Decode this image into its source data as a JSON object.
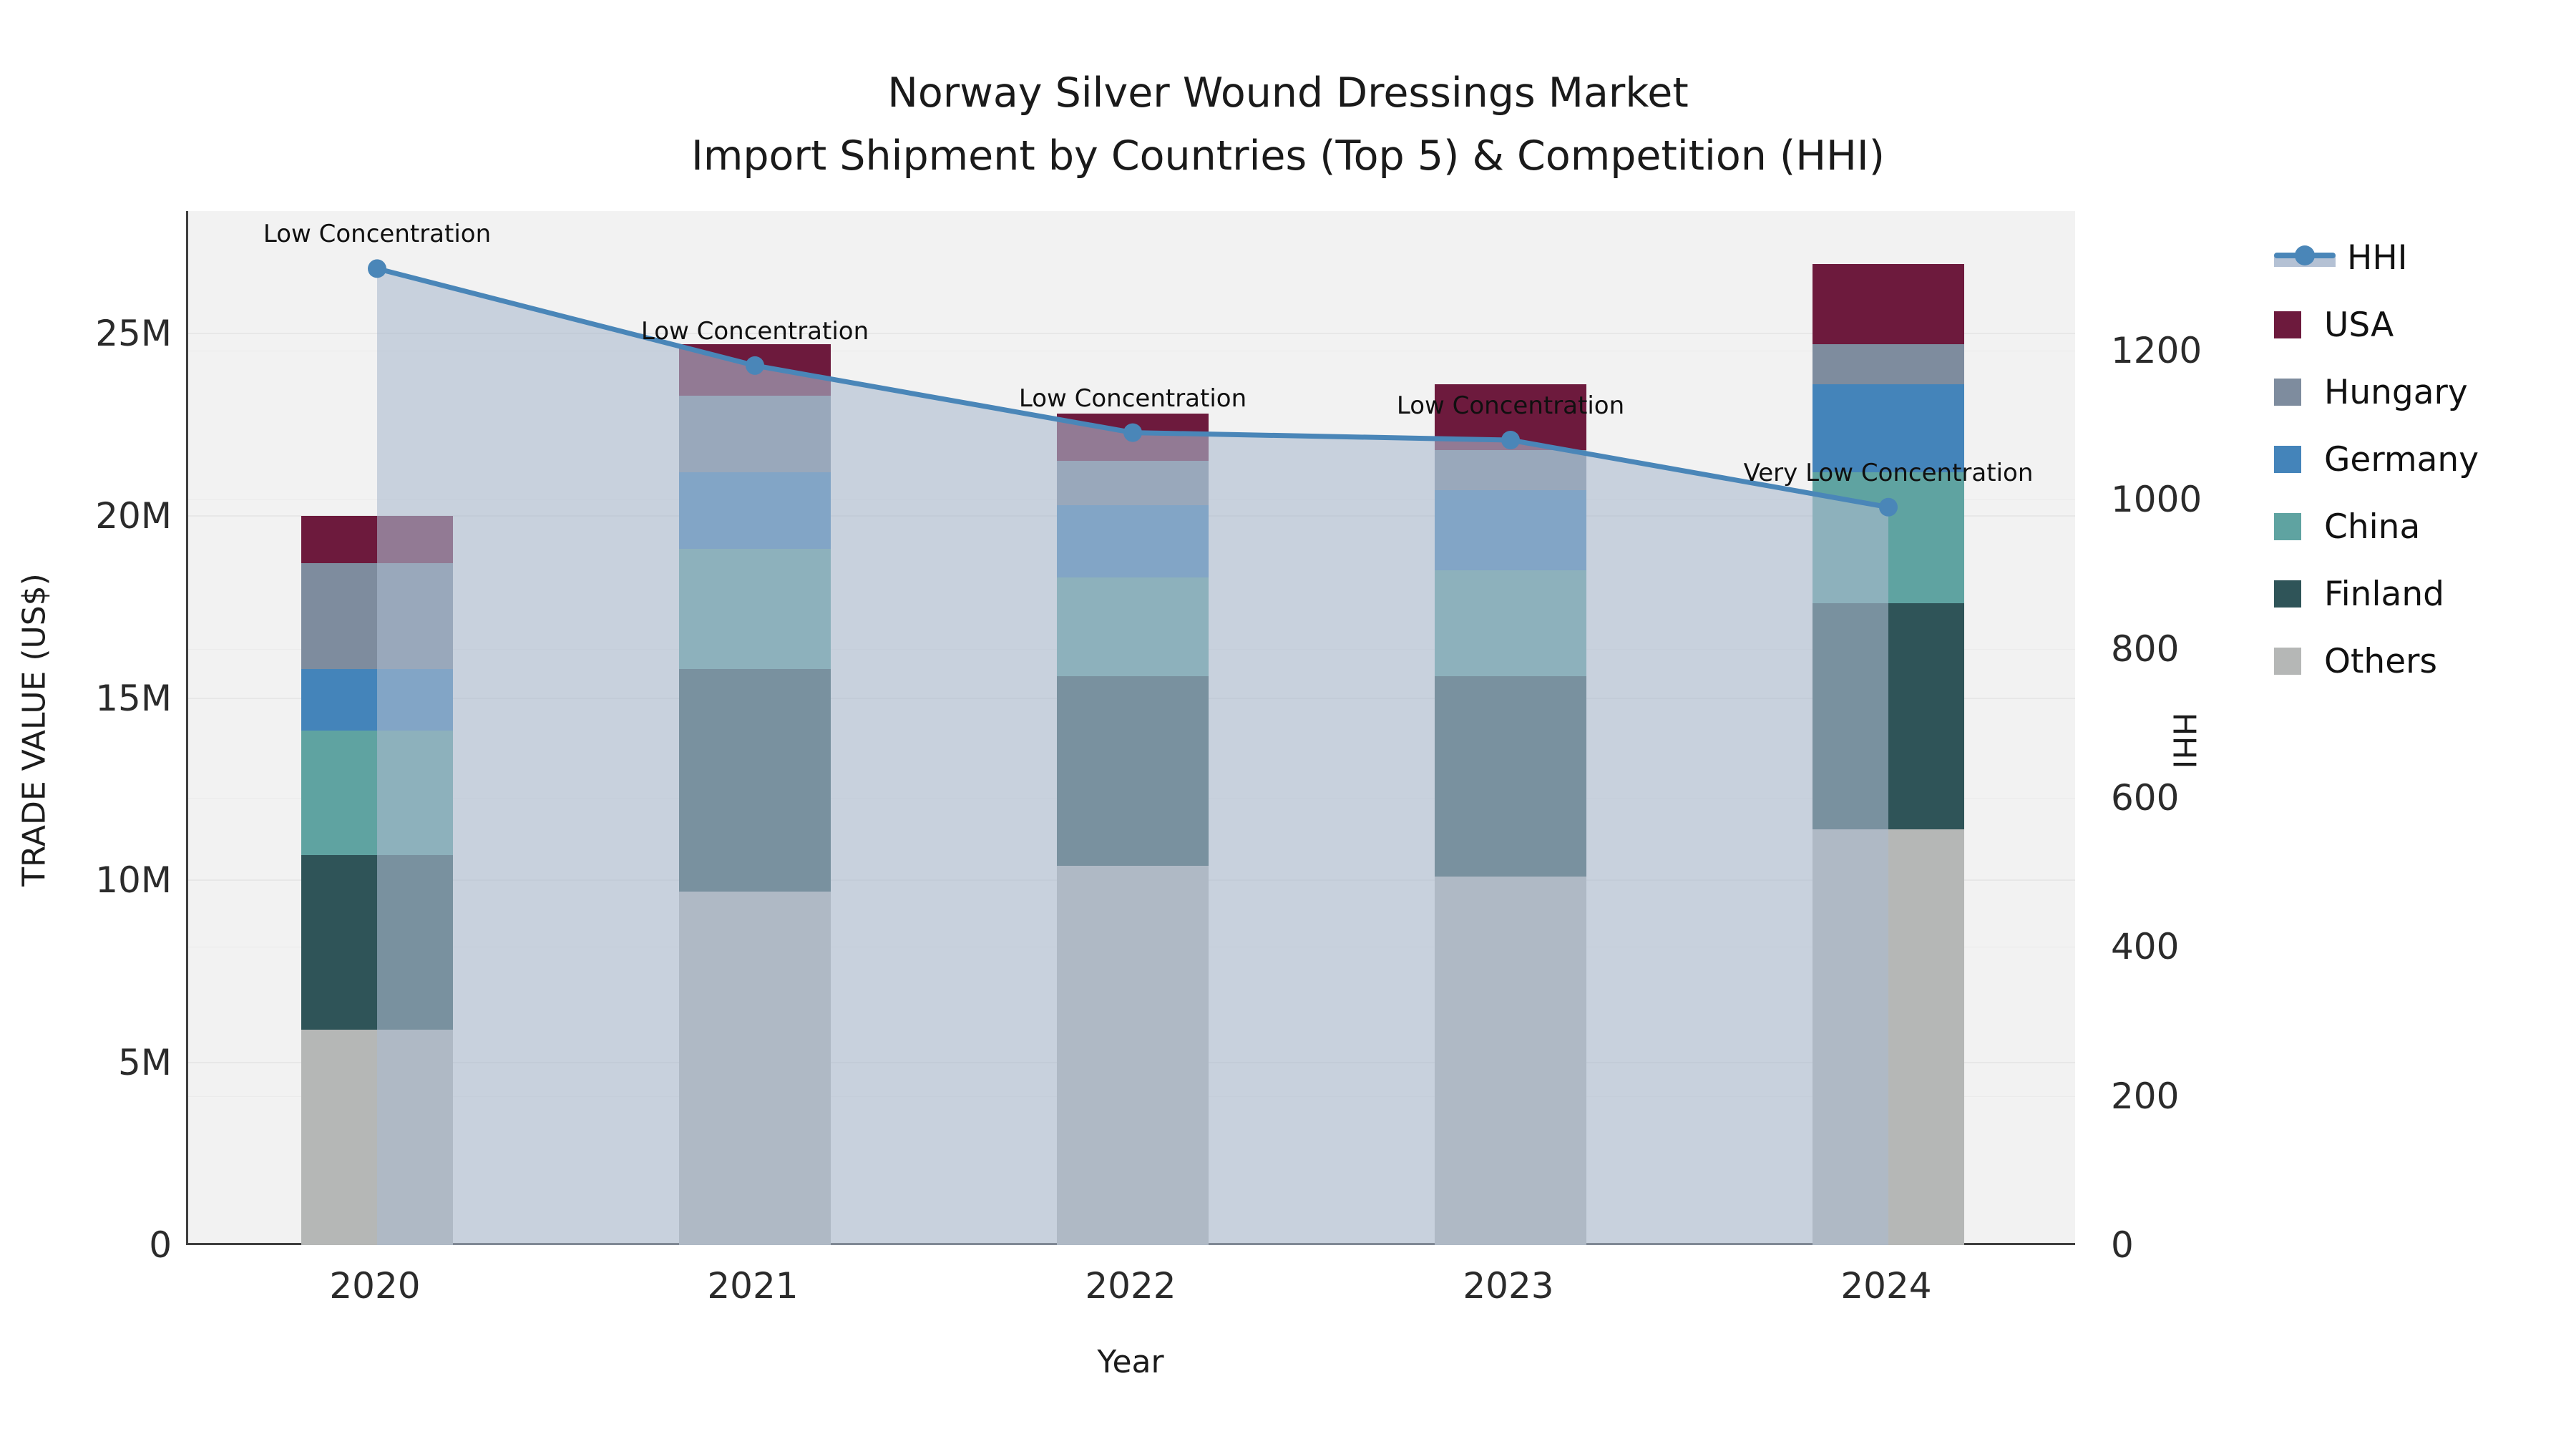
{
  "title": {
    "line1": "Norway Silver Wound Dressings Market",
    "line2": "Import Shipment by Countries (Top 5) & Competition (HHI)"
  },
  "axes": {
    "y_left_title": "TRADE VALUE (US$)",
    "y_right_title": "HHI",
    "x_title": "Year",
    "y_left_ticks": [
      "0",
      "5M",
      "10M",
      "15M",
      "20M",
      "25M"
    ],
    "y_left_tick_values": [
      0,
      5,
      10,
      15,
      20,
      25
    ],
    "y_right_ticks": [
      "0",
      "200",
      "400",
      "600",
      "800",
      "1000",
      "1200"
    ],
    "y_right_tick_values": [
      0,
      200,
      400,
      600,
      800,
      1000,
      1200
    ]
  },
  "legend": {
    "entries": [
      {
        "label": "HHI",
        "type": "line",
        "color": "#4a86b8"
      },
      {
        "label": "USA",
        "type": "square",
        "color": "#6d1a3d"
      },
      {
        "label": "Hungary",
        "type": "square",
        "color": "#7e8c9e"
      },
      {
        "label": "Germany",
        "type": "square",
        "color": "#4484ba"
      },
      {
        "label": "China",
        "type": "square",
        "color": "#5fa3a1"
      },
      {
        "label": "Finland",
        "type": "square",
        "color": "#2f5458"
      },
      {
        "label": "Others",
        "type": "square",
        "color": "#b5b7b6"
      }
    ]
  },
  "colors": {
    "hhi_line": "#4a86b8",
    "hhi_area_fill": "rgba(172,186,207,0.6)",
    "plot_background": "#f2f2f2",
    "axis_line": "#3f3f3f"
  },
  "chart_data": {
    "type": "bar+line",
    "title": "Norway Silver Wound Dressings Market — Import Shipment by Countries (Top 5) & Competition (HHI)",
    "xlabel": "Year",
    "ylabel_left": "TRADE VALUE (US$)",
    "ylabel_right": "HHI",
    "categories": [
      "2020",
      "2021",
      "2022",
      "2023",
      "2024"
    ],
    "unit": "million US$",
    "stack_order_bottom_to_top": [
      "Others",
      "Finland",
      "China",
      "Germany",
      "Hungary",
      "USA"
    ],
    "series": [
      {
        "name": "Others",
        "color": "#b5b7b6",
        "values": [
          5.9,
          9.7,
          10.4,
          10.1,
          11.4
        ]
      },
      {
        "name": "Finland",
        "color": "#2f5458",
        "values": [
          4.8,
          6.1,
          5.2,
          5.5,
          6.2
        ]
      },
      {
        "name": "China",
        "color": "#5fa3a1",
        "values": [
          3.4,
          3.3,
          2.7,
          2.9,
          3.6
        ]
      },
      {
        "name": "Germany",
        "color": "#4484ba",
        "values": [
          1.7,
          2.1,
          2.0,
          2.2,
          2.4
        ]
      },
      {
        "name": "Hungary",
        "color": "#7e8c9e",
        "values": [
          2.9,
          2.1,
          1.2,
          1.1,
          1.1
        ]
      },
      {
        "name": "USA",
        "color": "#6d1a3d",
        "values": [
          1.3,
          1.4,
          1.3,
          1.8,
          2.2
        ]
      }
    ],
    "bar_totals": [
      20.0,
      24.7,
      22.8,
      23.6,
      26.9
    ],
    "hhi_series": {
      "name": "HHI",
      "color": "#4a86b8",
      "values": [
        1310,
        1180,
        1090,
        1080,
        990
      ]
    },
    "annotations": [
      {
        "x": "2020",
        "text": "Low Concentration"
      },
      {
        "x": "2021",
        "text": "Low Concentration"
      },
      {
        "x": "2022",
        "text": "Low Concentration"
      },
      {
        "x": "2023",
        "text": "Low Concentration"
      },
      {
        "x": "2024",
        "text": "Very Low Concentration"
      }
    ],
    "ylim_left": [
      0,
      28.4
    ],
    "ylim_right": [
      0,
      1387
    ],
    "grid": true,
    "legend_position": "right"
  }
}
